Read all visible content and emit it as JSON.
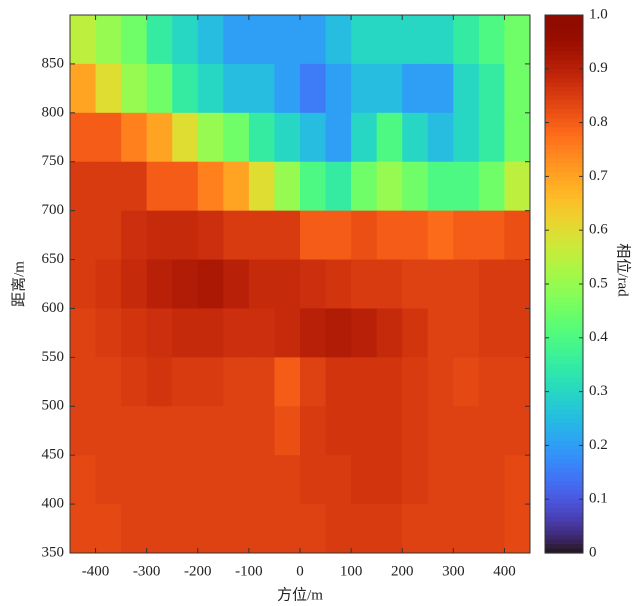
{
  "chart_data": {
    "type": "heatmap",
    "xlabel": "方位/m",
    "ylabel": "距离/m",
    "colorbar_label": "相位/rad",
    "colormap": "turbo",
    "x": [
      -425,
      -375,
      -325,
      -275,
      -225,
      -175,
      -125,
      -75,
      -25,
      25,
      75,
      125,
      175,
      225,
      275,
      325,
      375,
      425
    ],
    "y": [
      875,
      825,
      775,
      725,
      675,
      625,
      575,
      525,
      475,
      425,
      375
    ],
    "z": [
      [
        0.55,
        0.5,
        0.45,
        0.35,
        0.3,
        0.25,
        0.2,
        0.2,
        0.2,
        0.2,
        0.25,
        0.3,
        0.3,
        0.3,
        0.3,
        0.35,
        0.4,
        0.45
      ],
      [
        0.7,
        0.6,
        0.5,
        0.45,
        0.35,
        0.3,
        0.25,
        0.25,
        0.2,
        0.15,
        0.2,
        0.25,
        0.25,
        0.2,
        0.2,
        0.3,
        0.35,
        0.45
      ],
      [
        0.8,
        0.8,
        0.75,
        0.7,
        0.6,
        0.5,
        0.45,
        0.35,
        0.3,
        0.25,
        0.2,
        0.3,
        0.4,
        0.3,
        0.25,
        0.3,
        0.35,
        0.45
      ],
      [
        0.85,
        0.85,
        0.85,
        0.8,
        0.8,
        0.75,
        0.7,
        0.6,
        0.5,
        0.4,
        0.35,
        0.45,
        0.5,
        0.45,
        0.4,
        0.4,
        0.45,
        0.55
      ],
      [
        0.85,
        0.85,
        0.87,
        0.88,
        0.88,
        0.87,
        0.85,
        0.85,
        0.85,
        0.8,
        0.8,
        0.82,
        0.8,
        0.8,
        0.78,
        0.8,
        0.8,
        0.82
      ],
      [
        0.85,
        0.86,
        0.88,
        0.9,
        0.91,
        0.92,
        0.9,
        0.88,
        0.88,
        0.87,
        0.86,
        0.85,
        0.85,
        0.84,
        0.84,
        0.84,
        0.85,
        0.85
      ],
      [
        0.84,
        0.85,
        0.86,
        0.87,
        0.88,
        0.88,
        0.87,
        0.87,
        0.88,
        0.9,
        0.91,
        0.9,
        0.88,
        0.86,
        0.84,
        0.84,
        0.85,
        0.85
      ],
      [
        0.84,
        0.84,
        0.85,
        0.86,
        0.85,
        0.85,
        0.84,
        0.84,
        0.8,
        0.84,
        0.86,
        0.86,
        0.86,
        0.85,
        0.84,
        0.83,
        0.84,
        0.84
      ],
      [
        0.84,
        0.84,
        0.84,
        0.84,
        0.84,
        0.84,
        0.84,
        0.84,
        0.82,
        0.85,
        0.86,
        0.86,
        0.86,
        0.85,
        0.84,
        0.84,
        0.84,
        0.84
      ],
      [
        0.83,
        0.84,
        0.84,
        0.84,
        0.84,
        0.84,
        0.84,
        0.84,
        0.84,
        0.85,
        0.85,
        0.86,
        0.86,
        0.85,
        0.84,
        0.84,
        0.84,
        0.83
      ],
      [
        0.83,
        0.83,
        0.84,
        0.84,
        0.84,
        0.84,
        0.84,
        0.84,
        0.84,
        0.84,
        0.85,
        0.85,
        0.85,
        0.84,
        0.84,
        0.84,
        0.84,
        0.83
      ]
    ],
    "xlim": [
      -450,
      450
    ],
    "ylim": [
      350,
      900
    ],
    "xticks": [
      -400,
      -300,
      -200,
      -100,
      0,
      100,
      200,
      300,
      400
    ],
    "yticks": [
      350,
      400,
      450,
      500,
      550,
      600,
      650,
      700,
      750,
      800,
      850
    ],
    "clim": [
      0,
      1
    ],
    "cticks": [
      0,
      0.1,
      0.2,
      0.3,
      0.4,
      0.5,
      0.6,
      0.7,
      0.8,
      0.9,
      {
        "value": 1,
        "label": "1.0"
      }
    ]
  }
}
